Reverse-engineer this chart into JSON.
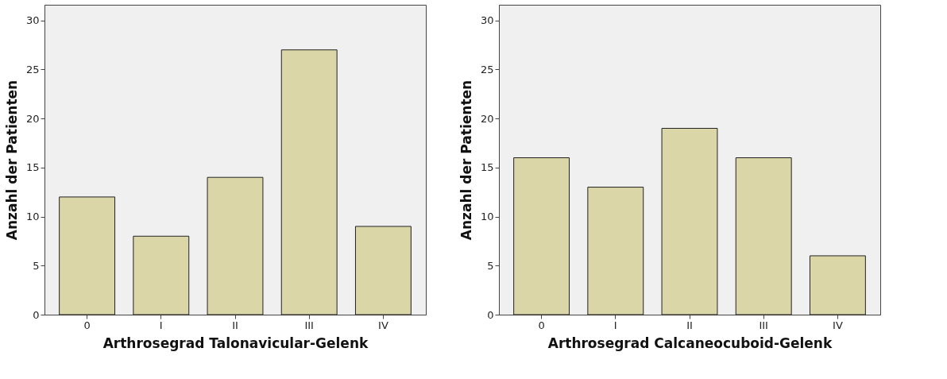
{
  "chart_data": [
    {
      "type": "bar",
      "xlabel": "Arthrosegrad Talonavicular-Gelenk",
      "ylabel": "Anzahl der Patienten",
      "categories": [
        "0",
        "I",
        "II",
        "III",
        "IV"
      ],
      "values": [
        12,
        8,
        14,
        27,
        9
      ],
      "color": "#dad6a8",
      "ylim": [
        0,
        31.6
      ],
      "yticks": [
        0,
        5,
        10,
        15,
        20,
        25,
        30
      ],
      "grid": false
    },
    {
      "type": "bar",
      "xlabel": "Arthrosegrad Calcaneocuboid-Gelenk",
      "ylabel": "Anzahl der Patienten",
      "categories": [
        "0",
        "I",
        "II",
        "III",
        "IV"
      ],
      "values": [
        16,
        13,
        19,
        16,
        6
      ],
      "color": "#dad6a8",
      "ylim": [
        0,
        31.6
      ],
      "yticks": [
        0,
        5,
        10,
        15,
        20,
        25,
        30
      ],
      "grid": false
    }
  ]
}
